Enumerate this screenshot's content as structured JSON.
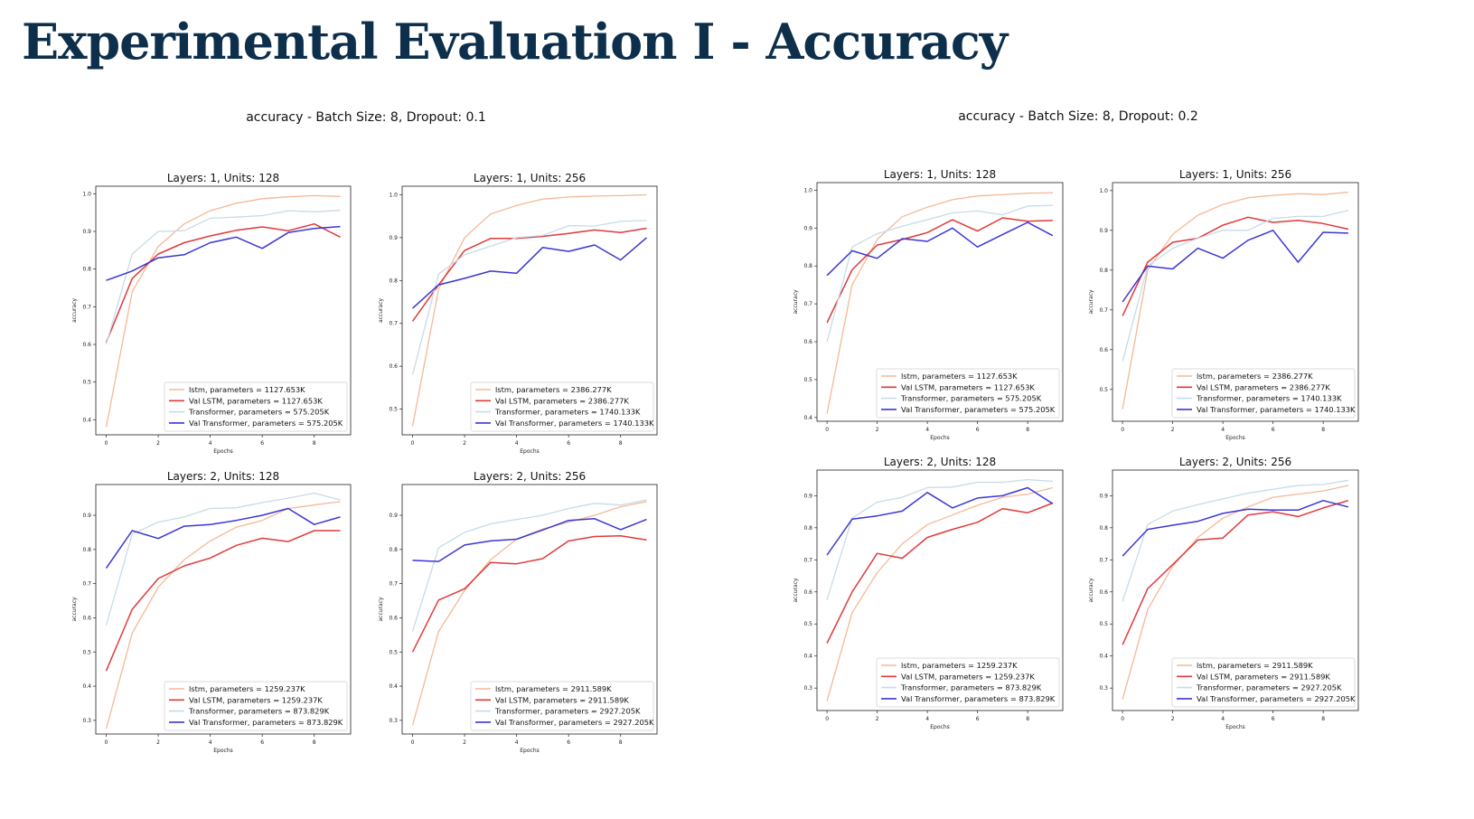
{
  "slide": {
    "title": "Experimental Evaluation I - Accuracy"
  },
  "groups": [
    {
      "title": "accuracy - Batch Size: 8, Dropout: 0.1"
    },
    {
      "title": "accuracy - Batch Size: 8, Dropout: 0.2"
    }
  ],
  "colors": {
    "lstm": "#f5b896",
    "val_lstm": "#e03a3a",
    "transformer": "#c5dcea",
    "val_transformer": "#3a36d6"
  },
  "chart_data": [
    {
      "type": "line",
      "title": "Layers: 1, Units: 128",
      "xlabel": "Epochs",
      "ylabel": "accuracy",
      "xlim": [
        -0.4,
        9.4
      ],
      "ylim": [
        0.36,
        1.02
      ],
      "xticks": [
        0,
        2,
        4,
        6,
        8
      ],
      "yticks": [
        0.4,
        0.5,
        0.6,
        0.7,
        0.8,
        0.9,
        1.0
      ],
      "x": [
        0,
        1,
        2,
        3,
        4,
        5,
        6,
        7,
        8,
        9
      ],
      "legend": "lower-right",
      "series": [
        {
          "name": "lstm, parameters = 1127.653K",
          "values": [
            0.38,
            0.74,
            0.86,
            0.92,
            0.955,
            0.975,
            0.987,
            0.992,
            0.995,
            0.993
          ]
        },
        {
          "name": "Val LSTM, parameters = 1127.653K",
          "values": [
            0.605,
            0.775,
            0.84,
            0.87,
            0.888,
            0.903,
            0.912,
            0.902,
            0.92,
            0.885
          ]
        },
        {
          "name": "Transformer, parameters = 575.205K",
          "values": [
            0.6,
            0.84,
            0.9,
            0.902,
            0.935,
            0.938,
            0.942,
            0.955,
            0.952,
            0.956
          ]
        },
        {
          "name": "Val Transformer, parameters = 575.205K",
          "values": [
            0.77,
            0.795,
            0.83,
            0.838,
            0.87,
            0.885,
            0.855,
            0.897,
            0.908,
            0.913
          ]
        }
      ]
    },
    {
      "type": "line",
      "title": "Layers: 1, Units: 256",
      "xlabel": "Epochs",
      "ylabel": "accuracy",
      "xlim": [
        -0.4,
        9.4
      ],
      "ylim": [
        0.44,
        1.02
      ],
      "xticks": [
        0,
        2,
        4,
        6,
        8
      ],
      "yticks": [
        0.5,
        0.6,
        0.7,
        0.8,
        0.9,
        1.0
      ],
      "x": [
        0,
        1,
        2,
        3,
        4,
        5,
        6,
        7,
        8,
        9
      ],
      "legend": "lower-right",
      "series": [
        {
          "name": "lstm, parameters = 2386.277K",
          "values": [
            0.46,
            0.78,
            0.9,
            0.955,
            0.975,
            0.99,
            0.995,
            0.997,
            0.998,
            1.0
          ]
        },
        {
          "name": "Val LSTM, parameters = 2386.277K",
          "values": [
            0.705,
            0.79,
            0.87,
            0.898,
            0.898,
            0.903,
            0.91,
            0.918,
            0.912,
            0.922
          ]
        },
        {
          "name": "Transformer, parameters = 1740.133K",
          "values": [
            0.58,
            0.815,
            0.86,
            0.88,
            0.9,
            0.905,
            0.928,
            0.927,
            0.938,
            0.94
          ]
        },
        {
          "name": "Val Transformer, parameters = 1740.133K",
          "values": [
            0.735,
            0.79,
            0.805,
            0.822,
            0.817,
            0.877,
            0.868,
            0.883,
            0.848,
            0.9
          ]
        }
      ]
    },
    {
      "type": "line",
      "title": "Layers: 2, Units: 128",
      "xlabel": "Epochs",
      "ylabel": "accuracy",
      "xlim": [
        -0.4,
        9.4
      ],
      "ylim": [
        0.26,
        0.99
      ],
      "xticks": [
        0,
        2,
        4,
        6,
        8
      ],
      "yticks": [
        0.3,
        0.4,
        0.5,
        0.6,
        0.7,
        0.8,
        0.9
      ],
      "x": [
        0,
        1,
        2,
        3,
        4,
        5,
        6,
        7,
        8,
        9
      ],
      "legend": "lower-right",
      "series": [
        {
          "name": "lstm, parameters = 1259.237K",
          "values": [
            0.275,
            0.555,
            0.69,
            0.77,
            0.825,
            0.865,
            0.885,
            0.92,
            0.93,
            0.94
          ]
        },
        {
          "name": "Val LSTM, parameters = 1259.237K",
          "values": [
            0.445,
            0.625,
            0.715,
            0.752,
            0.775,
            0.812,
            0.833,
            0.823,
            0.855,
            0.855
          ]
        },
        {
          "name": "Transformer, parameters = 873.829K",
          "values": [
            0.578,
            0.845,
            0.88,
            0.895,
            0.92,
            0.922,
            0.937,
            0.95,
            0.965,
            0.945
          ]
        },
        {
          "name": "Val Transformer, parameters = 873.829K",
          "values": [
            0.745,
            0.855,
            0.832,
            0.868,
            0.873,
            0.885,
            0.9,
            0.92,
            0.873,
            0.895
          ]
        }
      ]
    },
    {
      "type": "line",
      "title": "Layers: 2, Units: 256",
      "xlabel": "Epochs",
      "ylabel": "accuracy",
      "xlim": [
        -0.4,
        9.4
      ],
      "ylim": [
        0.26,
        0.99
      ],
      "xticks": [
        0,
        2,
        4,
        6,
        8
      ],
      "yticks": [
        0.3,
        0.4,
        0.5,
        0.6,
        0.7,
        0.8,
        0.9
      ],
      "x": [
        0,
        1,
        2,
        3,
        4,
        5,
        6,
        7,
        8,
        9
      ],
      "legend": "lower-right",
      "series": [
        {
          "name": "lstm, parameters = 2911.589K",
          "values": [
            0.285,
            0.56,
            0.68,
            0.77,
            0.83,
            0.86,
            0.88,
            0.9,
            0.925,
            0.94
          ]
        },
        {
          "name": "Val LSTM, parameters = 2911.589K",
          "values": [
            0.5,
            0.652,
            0.685,
            0.762,
            0.758,
            0.773,
            0.825,
            0.838,
            0.84,
            0.828
          ]
        },
        {
          "name": "Transformer, parameters = 2927.205K",
          "values": [
            0.56,
            0.805,
            0.85,
            0.875,
            0.888,
            0.9,
            0.92,
            0.935,
            0.93,
            0.945
          ]
        },
        {
          "name": "Val Transformer, parameters = 2927.205K",
          "values": [
            0.768,
            0.765,
            0.813,
            0.825,
            0.83,
            0.857,
            0.885,
            0.89,
            0.858,
            0.888
          ]
        }
      ]
    },
    {
      "type": "line",
      "title": "Layers: 1, Units: 128",
      "xlabel": "Epochs",
      "ylabel": "accuracy",
      "xlim": [
        -0.4,
        9.4
      ],
      "ylim": [
        0.39,
        1.02
      ],
      "xticks": [
        0,
        2,
        4,
        6,
        8
      ],
      "yticks": [
        0.4,
        0.5,
        0.6,
        0.7,
        0.8,
        0.9,
        1.0
      ],
      "x": [
        0,
        1,
        2,
        3,
        4,
        5,
        6,
        7,
        8,
        9
      ],
      "legend": "lower-right",
      "series": [
        {
          "name": "lstm, parameters = 1127.653K",
          "values": [
            0.41,
            0.75,
            0.87,
            0.93,
            0.955,
            0.975,
            0.985,
            0.988,
            0.992,
            0.993
          ]
        },
        {
          "name": "Val LSTM, parameters = 1127.653K",
          "values": [
            0.65,
            0.79,
            0.855,
            0.87,
            0.888,
            0.922,
            0.892,
            0.927,
            0.918,
            0.92
          ]
        },
        {
          "name": "Transformer, parameters = 575.205K",
          "values": [
            0.6,
            0.85,
            0.885,
            0.905,
            0.922,
            0.94,
            0.945,
            0.935,
            0.958,
            0.96
          ]
        },
        {
          "name": "Val Transformer, parameters = 575.205K",
          "values": [
            0.775,
            0.84,
            0.82,
            0.872,
            0.865,
            0.9,
            0.85,
            0.883,
            0.915,
            0.88
          ]
        }
      ]
    },
    {
      "type": "line",
      "title": "Layers: 1, Units: 256",
      "xlabel": "Epochs",
      "ylabel": "accuracy",
      "xlim": [
        -0.4,
        9.4
      ],
      "ylim": [
        0.42,
        1.02
      ],
      "xticks": [
        0,
        2,
        4,
        6,
        8
      ],
      "yticks": [
        0.5,
        0.6,
        0.7,
        0.8,
        0.9,
        1.0
      ],
      "x": [
        0,
        1,
        2,
        3,
        4,
        5,
        6,
        7,
        8,
        9
      ],
      "legend": "lower-right",
      "series": [
        {
          "name": "lstm, parameters = 2386.277K",
          "values": [
            0.45,
            0.8,
            0.89,
            0.938,
            0.965,
            0.982,
            0.988,
            0.992,
            0.99,
            0.996
          ]
        },
        {
          "name": "Val LSTM, parameters = 2386.277K",
          "values": [
            0.685,
            0.82,
            0.87,
            0.88,
            0.913,
            0.933,
            0.92,
            0.925,
            0.917,
            0.903
          ]
        },
        {
          "name": "Transformer, parameters = 1740.133K",
          "values": [
            0.57,
            0.81,
            0.855,
            0.88,
            0.9,
            0.9,
            0.93,
            0.935,
            0.935,
            0.95
          ]
        },
        {
          "name": "Val Transformer, parameters = 1740.133K",
          "values": [
            0.72,
            0.81,
            0.803,
            0.855,
            0.83,
            0.875,
            0.9,
            0.82,
            0.895,
            0.893
          ]
        }
      ]
    },
    {
      "type": "line",
      "title": "Layers: 2, Units: 128",
      "xlabel": "Epochs",
      "ylabel": "accuracy",
      "xlim": [
        -0.4,
        9.4
      ],
      "ylim": [
        0.23,
        0.98
      ],
      "xticks": [
        0,
        2,
        4,
        6,
        8
      ],
      "yticks": [
        0.3,
        0.4,
        0.5,
        0.6,
        0.7,
        0.8,
        0.9
      ],
      "x": [
        0,
        1,
        2,
        3,
        4,
        5,
        6,
        7,
        8,
        9
      ],
      "legend": "lower-right",
      "series": [
        {
          "name": "lstm, parameters = 1259.237K",
          "values": [
            0.26,
            0.535,
            0.66,
            0.75,
            0.81,
            0.84,
            0.87,
            0.895,
            0.905,
            0.925
          ]
        },
        {
          "name": "Val LSTM, parameters = 1259.237K",
          "values": [
            0.44,
            0.6,
            0.72,
            0.705,
            0.77,
            0.795,
            0.817,
            0.86,
            0.847,
            0.877
          ]
        },
        {
          "name": "Transformer, parameters = 873.829K",
          "values": [
            0.575,
            0.83,
            0.88,
            0.895,
            0.925,
            0.927,
            0.942,
            0.942,
            0.95,
            0.945
          ]
        },
        {
          "name": "Val Transformer, parameters = 873.829K",
          "values": [
            0.715,
            0.827,
            0.837,
            0.852,
            0.91,
            0.862,
            0.893,
            0.9,
            0.925,
            0.875
          ]
        }
      ]
    },
    {
      "type": "line",
      "title": "Layers: 2, Units: 256",
      "xlabel": "Epochs",
      "ylabel": "accuracy",
      "xlim": [
        -0.4,
        9.4
      ],
      "ylim": [
        0.23,
        0.98
      ],
      "xticks": [
        0,
        2,
        4,
        6,
        8
      ],
      "yticks": [
        0.3,
        0.4,
        0.5,
        0.6,
        0.7,
        0.8,
        0.9
      ],
      "x": [
        0,
        1,
        2,
        3,
        4,
        5,
        6,
        7,
        8,
        9
      ],
      "legend": "lower-right",
      "series": [
        {
          "name": "lstm, parameters = 2911.589K",
          "values": [
            0.265,
            0.545,
            0.68,
            0.77,
            0.83,
            0.865,
            0.895,
            0.905,
            0.915,
            0.932
          ]
        },
        {
          "name": "Val LSTM, parameters = 2911.589K",
          "values": [
            0.435,
            0.61,
            0.685,
            0.762,
            0.768,
            0.84,
            0.85,
            0.835,
            0.862,
            0.885
          ]
        },
        {
          "name": "Transformer, parameters = 2927.205K",
          "values": [
            0.57,
            0.81,
            0.852,
            0.872,
            0.89,
            0.908,
            0.92,
            0.932,
            0.935,
            0.948
          ]
        },
        {
          "name": "Val Transformer, parameters = 2927.205K",
          "values": [
            0.712,
            0.795,
            0.808,
            0.82,
            0.845,
            0.858,
            0.855,
            0.855,
            0.885,
            0.865
          ]
        }
      ]
    }
  ]
}
